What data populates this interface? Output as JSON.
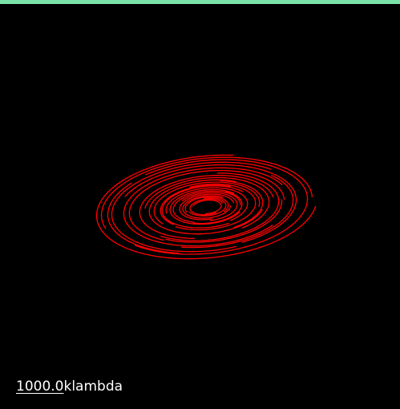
{
  "window": {
    "accent_color": "#7be3a9",
    "background_color": "#000000",
    "track_color": "#ff0000"
  },
  "scale_bar": {
    "value": "1000.0",
    "unit": "klambda"
  }
}
